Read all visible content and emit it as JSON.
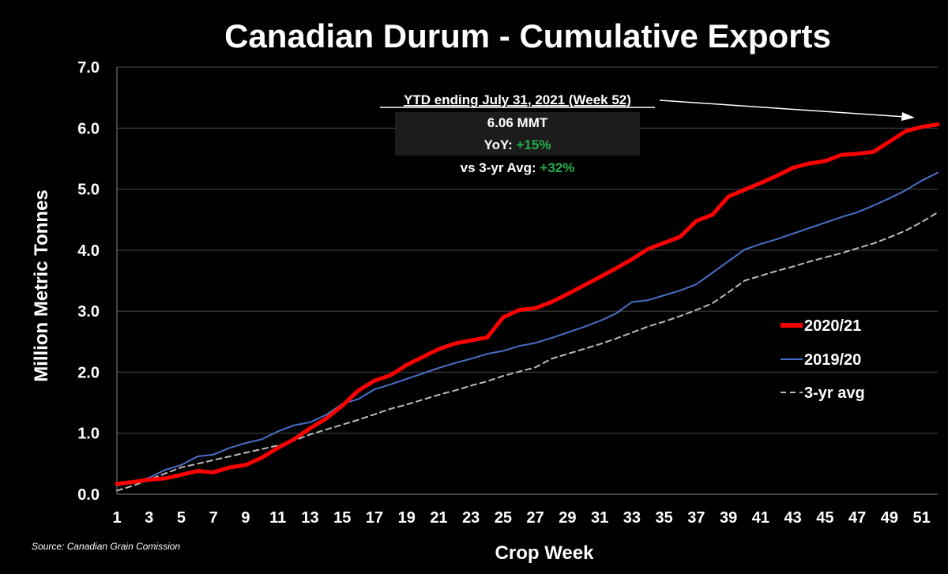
{
  "chart_data": {
    "type": "line",
    "title": "Canadian Durum - Cumulative Exports",
    "xlabel": "Crop Week",
    "ylabel": "Million Metric Tonnes",
    "ylim": [
      0,
      7
    ],
    "ytick_labels": [
      "0.0",
      "1.0",
      "2.0",
      "3.0",
      "4.0",
      "5.0",
      "6.0",
      "7.0"
    ],
    "x": [
      1,
      2,
      3,
      4,
      5,
      6,
      7,
      8,
      9,
      10,
      11,
      12,
      13,
      14,
      15,
      16,
      17,
      18,
      19,
      20,
      21,
      22,
      23,
      24,
      25,
      26,
      27,
      28,
      29,
      30,
      31,
      32,
      33,
      34,
      35,
      36,
      37,
      38,
      39,
      40,
      41,
      42,
      43,
      44,
      45,
      46,
      47,
      48,
      49,
      50,
      51,
      52
    ],
    "xtick_labels": [
      "1",
      "3",
      "5",
      "7",
      "9",
      "11",
      "13",
      "15",
      "17",
      "19",
      "21",
      "23",
      "25",
      "27",
      "29",
      "31",
      "33",
      "35",
      "37",
      "39",
      "41",
      "43",
      "45",
      "47",
      "49",
      "51"
    ],
    "grid": true,
    "legend_position": "right",
    "series": [
      {
        "name": "2020/21",
        "color": "#ff0000",
        "style": "solid-thick",
        "values": [
          0.17,
          0.2,
          0.24,
          0.26,
          0.32,
          0.38,
          0.36,
          0.44,
          0.48,
          0.6,
          0.76,
          0.9,
          1.08,
          1.24,
          1.45,
          1.7,
          1.86,
          1.95,
          2.12,
          2.25,
          2.38,
          2.47,
          2.52,
          2.57,
          2.9,
          3.02,
          3.05,
          3.15,
          3.28,
          3.42,
          3.56,
          3.7,
          3.85,
          4.02,
          4.12,
          4.22,
          4.48,
          4.58,
          4.88,
          4.99,
          5.1,
          5.22,
          5.35,
          5.42,
          5.46,
          5.56,
          5.58,
          5.61,
          5.78,
          5.95,
          6.02,
          6.06
        ]
      },
      {
        "name": "2019/20",
        "color": "#4a6fc8",
        "style": "solid",
        "values": [
          0.14,
          0.2,
          0.27,
          0.4,
          0.48,
          0.62,
          0.65,
          0.76,
          0.84,
          0.9,
          1.03,
          1.13,
          1.18,
          1.3,
          1.48,
          1.56,
          1.72,
          1.8,
          1.89,
          1.98,
          2.07,
          2.15,
          2.22,
          2.3,
          2.35,
          2.43,
          2.48,
          2.56,
          2.65,
          2.74,
          2.84,
          2.96,
          3.15,
          3.18,
          3.26,
          3.34,
          3.44,
          3.63,
          3.82,
          4.01,
          4.1,
          4.18,
          4.27,
          4.36,
          4.45,
          4.54,
          4.62,
          4.73,
          4.85,
          4.98,
          5.14,
          5.27
        ]
      },
      {
        "name": "3-yr avg",
        "color": "#bbbbbb",
        "style": "dashed",
        "values": [
          0.06,
          0.14,
          0.24,
          0.34,
          0.44,
          0.5,
          0.56,
          0.62,
          0.68,
          0.74,
          0.8,
          0.88,
          0.98,
          1.06,
          1.14,
          1.22,
          1.31,
          1.4,
          1.47,
          1.55,
          1.63,
          1.7,
          1.78,
          1.85,
          1.94,
          2.01,
          2.08,
          2.22,
          2.3,
          2.38,
          2.46,
          2.55,
          2.65,
          2.75,
          2.83,
          2.92,
          3.02,
          3.13,
          3.31,
          3.5,
          3.58,
          3.66,
          3.73,
          3.81,
          3.88,
          3.95,
          4.03,
          4.11,
          4.21,
          4.32,
          4.46,
          4.62
        ]
      }
    ],
    "annotation": {
      "header": "YTD ending July 31, 2021 (Week 52)",
      "line1": "6.06 MMT",
      "yoy_label": "YoY: ",
      "yoy_value": "+15%",
      "avg_label": "vs 3-yr Avg: ",
      "avg_value": "+32%",
      "positive_color": "#22b04b"
    },
    "source": "Source: Canadian Grain Comission"
  }
}
